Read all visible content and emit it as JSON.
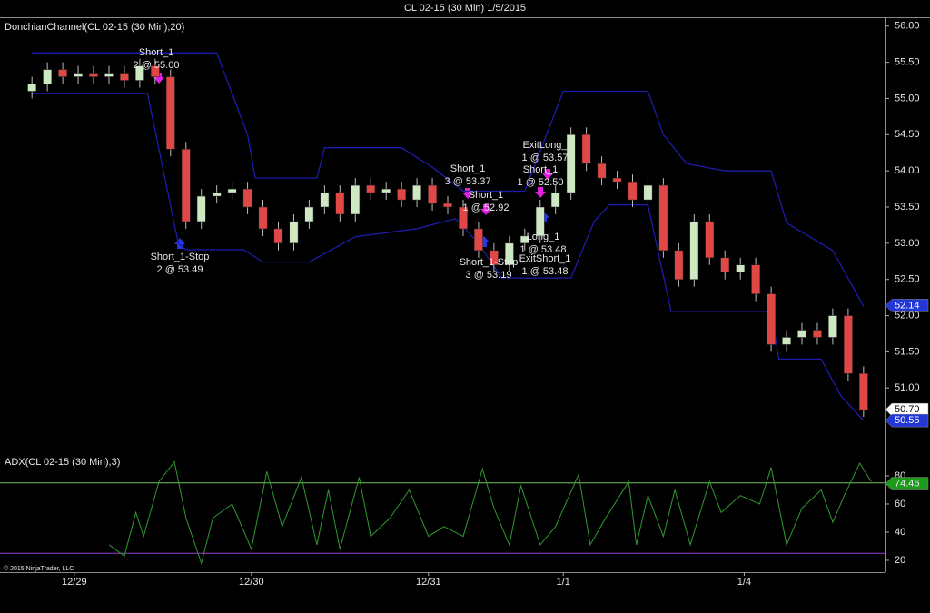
{
  "window_title": "CL 02-15 (30 Min)  1/5/2015",
  "copyright": "© 2015 NinjaTrader, LLC",
  "chart_data": [
    {
      "type": "candlestick",
      "title": "DonchianChannel(CL 02-15 (30 Min),20)",
      "x": [
        0,
        4,
        8,
        12,
        16,
        20,
        24,
        28,
        32,
        36,
        40,
        44,
        48,
        52,
        56,
        60,
        64,
        68,
        72,
        76,
        80,
        84,
        88,
        92,
        96,
        100,
        104,
        108,
        112,
        116,
        120,
        124,
        128,
        132,
        136,
        140,
        144,
        148,
        152,
        156,
        160,
        164,
        168,
        172,
        176,
        180,
        184,
        188,
        192,
        196,
        200,
        204,
        208,
        212,
        216
      ],
      "open": [
        55.1,
        55.2,
        55.4,
        55.3,
        55.35,
        55.3,
        55.35,
        55.25,
        55.45,
        55.3,
        54.3,
        53.3,
        53.65,
        53.7,
        53.75,
        53.5,
        53.2,
        53.0,
        53.3,
        53.5,
        53.7,
        53.4,
        53.8,
        53.7,
        53.75,
        53.6,
        53.8,
        53.55,
        53.5,
        53.2,
        52.9,
        52.7,
        53.0,
        53.1,
        53.5,
        53.7,
        54.5,
        54.1,
        53.9,
        53.85,
        53.6,
        53.8,
        52.9,
        52.5,
        53.3,
        52.8,
        52.6,
        52.7,
        52.3,
        51.6,
        51.7,
        51.8,
        51.7,
        52.0,
        51.2
      ],
      "high": [
        55.3,
        55.5,
        55.5,
        55.45,
        55.45,
        55.45,
        55.45,
        55.55,
        55.55,
        55.4,
        54.4,
        53.75,
        53.8,
        53.85,
        53.85,
        53.6,
        53.3,
        53.4,
        53.6,
        53.8,
        53.8,
        53.9,
        53.9,
        53.85,
        53.85,
        53.9,
        53.9,
        53.65,
        53.6,
        53.3,
        53.0,
        53.1,
        53.2,
        53.6,
        53.8,
        54.6,
        54.6,
        54.2,
        54.0,
        53.95,
        53.9,
        53.9,
        53.0,
        53.4,
        53.4,
        52.9,
        52.8,
        52.8,
        52.4,
        51.8,
        51.9,
        51.9,
        52.1,
        52.1,
        51.3
      ],
      "low": [
        55.0,
        55.1,
        55.2,
        55.2,
        55.2,
        55.2,
        55.15,
        55.15,
        55.2,
        54.2,
        53.2,
        53.2,
        53.55,
        53.6,
        53.4,
        53.1,
        52.9,
        52.9,
        53.2,
        53.4,
        53.3,
        53.3,
        53.6,
        53.6,
        53.5,
        53.5,
        53.45,
        53.4,
        53.1,
        52.8,
        52.6,
        52.6,
        52.9,
        53.0,
        53.4,
        53.6,
        54.0,
        53.8,
        53.75,
        53.5,
        53.5,
        52.8,
        52.4,
        52.4,
        52.7,
        52.5,
        52.5,
        52.2,
        51.5,
        51.5,
        51.6,
        51.6,
        51.6,
        51.1,
        50.6
      ],
      "close": [
        55.2,
        55.4,
        55.3,
        55.35,
        55.3,
        55.35,
        55.25,
        55.45,
        55.3,
        54.3,
        53.3,
        53.65,
        53.7,
        53.75,
        53.5,
        53.2,
        53.0,
        53.3,
        53.5,
        53.7,
        53.4,
        53.8,
        53.7,
        53.75,
        53.6,
        53.8,
        53.55,
        53.5,
        53.2,
        52.9,
        52.7,
        53.0,
        53.1,
        53.5,
        53.7,
        54.5,
        54.1,
        53.9,
        53.85,
        53.6,
        53.8,
        52.9,
        52.5,
        53.3,
        52.8,
        52.6,
        52.7,
        52.3,
        51.6,
        51.7,
        51.8,
        51.7,
        52.0,
        51.2,
        50.7
      ],
      "up_color": "#cfe8c4",
      "down_color": "#e04848",
      "overlays": [
        {
          "x": [
            0,
            48,
            56,
            58,
            74,
            76,
            96,
            104,
            112,
            124,
            128,
            138,
            160,
            164,
            170,
            180,
            192,
            196,
            208,
            216
          ],
          "values": [
            55.63,
            55.63,
            54.5,
            53.9,
            53.9,
            54.32,
            54.32,
            54.05,
            53.72,
            53.72,
            53.72,
            55.1,
            55.1,
            54.5,
            54.1,
            54.0,
            54.0,
            53.28,
            52.9,
            52.13
          ],
          "color": "#1c1caa"
        },
        {
          "x": [
            0,
            30,
            38,
            40,
            55,
            60,
            72,
            84,
            100,
            110,
            116,
            122,
            130,
            140,
            146,
            150,
            160,
            166,
            192,
            194,
            205,
            210,
            216
          ],
          "values": [
            55.07,
            55.07,
            53.0,
            52.91,
            52.91,
            52.74,
            52.74,
            53.09,
            53.2,
            53.34,
            53.0,
            52.52,
            52.52,
            52.52,
            53.3,
            53.53,
            53.53,
            52.06,
            52.06,
            51.4,
            51.4,
            50.9,
            50.55
          ],
          "color": "#1c1caa"
        }
      ],
      "xlim": [
        -8.3,
        221.7
      ],
      "ylim": [
        50.15,
        56.11
      ],
      "yticks": [
        {
          "value": 51,
          "label": "51.00"
        },
        {
          "value": 51.5,
          "label": "51.50"
        },
        {
          "value": 52,
          "label": "52.00"
        },
        {
          "value": 52.5,
          "label": "52.50"
        },
        {
          "value": 53,
          "label": "53.00"
        },
        {
          "value": 53.5,
          "label": "53.50"
        },
        {
          "value": 54,
          "label": "54.00"
        },
        {
          "value": 54.5,
          "label": "54.50"
        },
        {
          "value": 55,
          "label": "55.00"
        },
        {
          "value": 55.5,
          "label": "55.50"
        },
        {
          "value": 56,
          "label": "56.00"
        }
      ],
      "price_markers": [
        {
          "value": 52.14,
          "color": "#2438d8"
        },
        {
          "value": 50.7,
          "label": "50.70",
          "color": "#ffffff"
        },
        {
          "value": 50.55,
          "color": "#2438d8"
        }
      ],
      "annotations": [
        {
          "label": "Short_1",
          "detail": "2 @ 55.00"
        },
        {
          "label": "Short_1-Stop",
          "detail": "2 @ 53.49"
        },
        {
          "label": "Short_1",
          "detail": "3 @ 53.37"
        },
        {
          "label": "Short_1",
          "detail": "1 @ 52.92"
        },
        {
          "label": "Short_1-Stop",
          "detail": "3 @ 53.19"
        },
        {
          "label": "ExitLong_",
          "detail": "1 @ 53.57"
        },
        {
          "label": "Short_1",
          "detail": "1 @ 52.50"
        },
        {
          "label": "Long_1",
          "detail": "1 @ 53.48"
        },
        {
          "label": "ExitShort_1",
          "detail": "1 @ 53.48"
        }
      ]
    },
    {
      "type": "line",
      "title": "ADX(CL 02-15 (30 Min),3)",
      "x": [
        20,
        24,
        27,
        29,
        33,
        37,
        40,
        44,
        47,
        52,
        57,
        61,
        65,
        70,
        74,
        77,
        80,
        85,
        88,
        93,
        98,
        103,
        107,
        112,
        117,
        120,
        124,
        127,
        132,
        136,
        142,
        145,
        149,
        155,
        157,
        160,
        164,
        167,
        171,
        176,
        179,
        184,
        189,
        192,
        196,
        200,
        205,
        208,
        211,
        215,
        218
      ],
      "values": [
        31,
        23,
        54,
        37,
        76,
        90,
        50,
        18,
        50,
        60,
        28,
        83,
        44,
        79,
        31,
        70,
        28,
        79,
        37,
        50,
        70,
        37,
        44,
        37,
        85,
        57,
        31,
        73,
        31,
        44,
        81,
        31,
        50,
        76,
        31,
        66,
        37,
        70,
        31,
        76,
        54,
        66,
        60,
        86,
        31,
        57,
        70,
        47,
        66,
        89,
        76
      ],
      "color": "#2f9a2f",
      "levels": [
        {
          "value": 75,
          "color": "#7cc060"
        },
        {
          "value": 25,
          "color": "#9a3cd0"
        }
      ],
      "last_value": 74.46,
      "last_color": "#1c9a1c",
      "xlim": [
        -8.3,
        221.7
      ],
      "ylim": [
        11.6,
        97.4
      ],
      "yticks": [
        20,
        40,
        60,
        80
      ],
      "xticks": [
        {
          "value": 11,
          "label": "12/29"
        },
        {
          "value": 57,
          "label": "12/30"
        },
        {
          "value": 103,
          "label": "12/31"
        },
        {
          "value": 138,
          "label": "1/1"
        },
        {
          "value": 185,
          "label": "1/4"
        }
      ]
    }
  ]
}
